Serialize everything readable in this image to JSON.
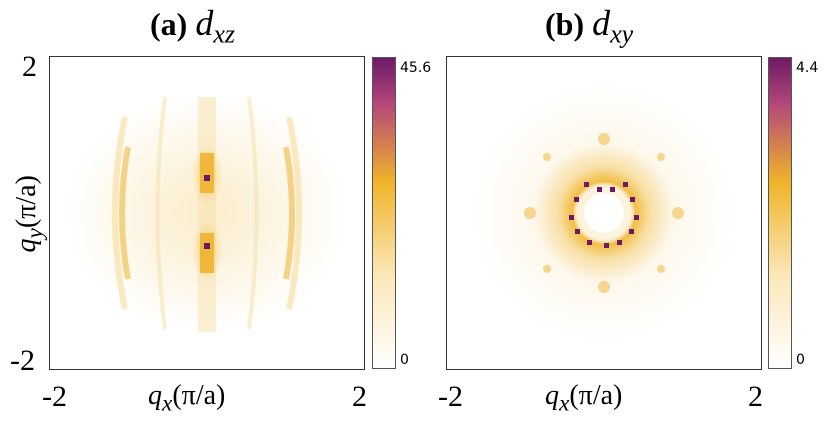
{
  "panels": [
    {
      "title_prefix": "(a)",
      "title_symbol": "d",
      "title_sub": "xz"
    },
    {
      "title_prefix": "(b)",
      "title_symbol": "d",
      "title_sub": "xy"
    }
  ],
  "colorbars": [
    {
      "max_label": "45.6",
      "min_label": "0"
    },
    {
      "max_label": "4.4",
      "min_label": "0"
    }
  ],
  "axes": {
    "x_tick_min": "-2",
    "x_tick_max": "2",
    "y_tick_min": "-2",
    "y_tick_max": "2",
    "xlabel_var": "q",
    "xlabel_sub": "x",
    "xlabel_unit": "(π/a)",
    "ylabel_var": "q",
    "ylabel_sub": "y",
    "ylabel_unit": "(π/a)"
  },
  "colors": {
    "cmap_low": "#ffffff",
    "cmap_mid": "#f0b429",
    "cmap_high": "#6d1a66"
  },
  "chart_data": [
    {
      "type": "heatmap",
      "title": "(a) d_xz",
      "xlabel": "q_x(π/a)",
      "ylabel": "q_y(π/a)",
      "xlim": [
        -2,
        2
      ],
      "ylim": [
        -2,
        2
      ],
      "colorbar_range": [
        0,
        45.6
      ],
      "features": [
        {
          "qx": 0,
          "qy": 0.45,
          "value": 45.6
        },
        {
          "qx": 0,
          "qy": -0.45,
          "value": 45.6
        },
        {
          "qx": -1.05,
          "qy": 0,
          "value": 12
        },
        {
          "qx": 1.05,
          "qy": 0,
          "value": 12
        }
      ]
    },
    {
      "type": "heatmap",
      "title": "(b) d_xy",
      "xlabel": "q_x(π/a)",
      "ylabel": "",
      "xlim": [
        -2,
        2
      ],
      "ylim": [
        -2,
        2
      ],
      "colorbar_range": [
        0,
        4.4
      ],
      "features": [
        {
          "ring_radius": 0.35,
          "value": 4.4
        }
      ]
    }
  ]
}
